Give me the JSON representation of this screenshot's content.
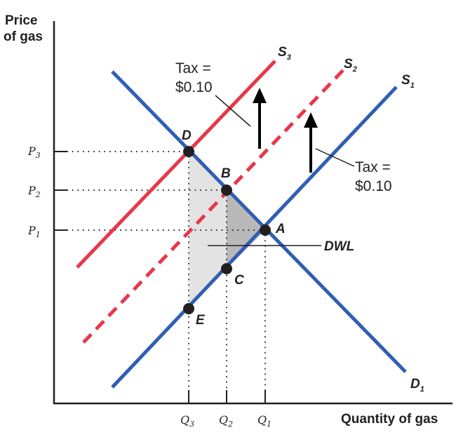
{
  "axes": {
    "y_title_line1": "Price",
    "y_title_line2": "of gas",
    "x_title": "Quantity of gas"
  },
  "ticks": {
    "y": [
      {
        "base": "P",
        "sub": "3"
      },
      {
        "base": "P",
        "sub": "2"
      },
      {
        "base": "P",
        "sub": "1"
      }
    ],
    "x": [
      {
        "base": "Q",
        "sub": "3"
      },
      {
        "base": "Q",
        "sub": "2"
      },
      {
        "base": "Q",
        "sub": "1"
      }
    ]
  },
  "curves": {
    "S3": {
      "base": "S",
      "sub": "3",
      "color": "#e8374a",
      "style": "solid"
    },
    "S2": {
      "base": "S",
      "sub": "2",
      "color": "#e8374a",
      "style": "dashed"
    },
    "S1": {
      "base": "S",
      "sub": "1",
      "color": "#2f5fb3",
      "style": "solid"
    },
    "D1": {
      "base": "D",
      "sub": "1",
      "color": "#2f5fb3",
      "style": "solid"
    }
  },
  "points": {
    "A": "A",
    "B": "B",
    "C": "C",
    "D": "D",
    "E": "E"
  },
  "annotations": {
    "tax_left_line1": "Tax =",
    "tax_left_line2": "$0.10",
    "tax_right_line1": "Tax =",
    "tax_right_line2": "$0.10",
    "dwl": "DWL"
  },
  "colors": {
    "supply_tax": "#e8374a",
    "base_curves": "#2f5fb3",
    "dwl_light": "#e3e3e3",
    "dwl_dark": "#b9b9b9",
    "text": "#231f20"
  }
}
